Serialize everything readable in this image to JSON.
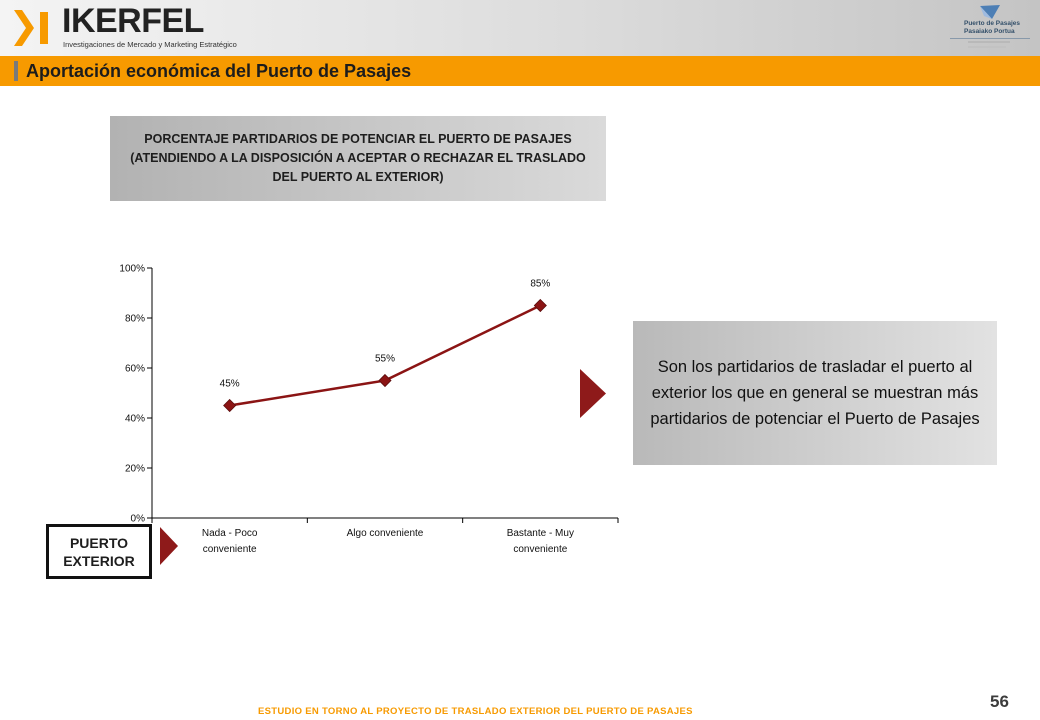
{
  "header": {
    "logo": {
      "name": "IKERFEL",
      "tagline": "Investigaciones de Mercado y Marketing Estratégico"
    },
    "port_logo": {
      "line1": "Puerto de Pasajes",
      "line2": "Pasaiako Portua"
    }
  },
  "page_title": "Aportación económica del Puerto de Pasajes",
  "subtitle": "PORCENTAJE PARTIDARIOS DE POTENCIAR EL PUERTO DE PASAJES (ATENDIENDO A LA DISPOSICIÓN A ACEPTAR O RECHAZAR EL TRASLADO DEL PUERTO AL EXTERIOR)",
  "chart_data": {
    "type": "line",
    "categories": [
      [
        "Nada - Poco",
        "conveniente"
      ],
      [
        "Algo conveniente"
      ],
      [
        "Bastante - Muy",
        "conveniente"
      ]
    ],
    "values": [
      45,
      55,
      85
    ],
    "data_labels": [
      "45%",
      "55%",
      "85%"
    ],
    "ylim": [
      0,
      100
    ],
    "yticks": [
      "0%",
      "20%",
      "40%",
      "60%",
      "80%",
      "100%"
    ],
    "xlabel": "",
    "ylabel": "",
    "grid": false,
    "legend": "none",
    "line_color": "#8b1414",
    "marker": "diamond"
  },
  "group_label": "PUERTO EXTERIOR",
  "note": "Son los partidarios de trasladar el puerto al exterior los que en general se muestran más partidarios de potenciar el Puerto de Pasajes",
  "footer": "ESTUDIO EN TORNO AL PROYECTO DE TRASLADO EXTERIOR DEL PUERTO DE PASAJES",
  "page_number": "56",
  "colors": {
    "accent_orange": "#f79a00",
    "series_red": "#8b1414",
    "arrow_red": "#8e1a1a"
  }
}
